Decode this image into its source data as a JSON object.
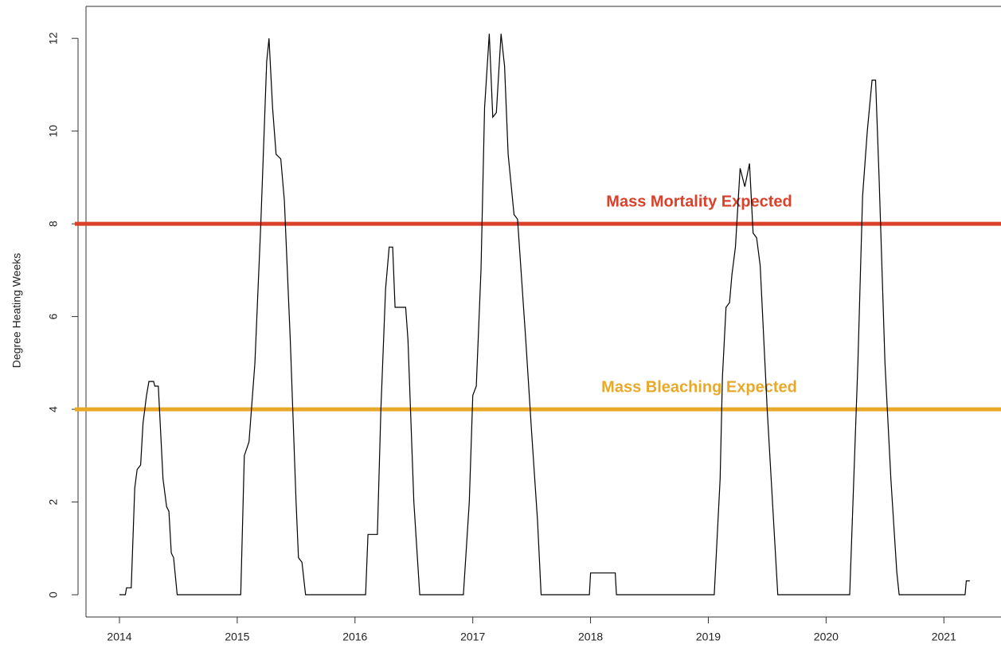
{
  "chart_data": {
    "type": "line",
    "y_label": "Degree Heating Weeks",
    "xlim": [
      2013.716,
      2021.485
    ],
    "ylim": [
      -0.48,
      12.69
    ],
    "xticks": [
      2014,
      2015,
      2016,
      2017,
      2018,
      2019,
      2020,
      2021
    ],
    "yticks": [
      0,
      2,
      4,
      6,
      8,
      10,
      12
    ],
    "thresholds": [
      {
        "value": 8,
        "label": "Mass Mortality Expected",
        "color": "#d9412b"
      },
      {
        "value": 4,
        "label": "Mass Bleaching Expected",
        "color": "#e8a92a"
      }
    ],
    "series": [
      {
        "color": "#000000",
        "x": [
          2014.0,
          2014.05,
          2014.06,
          2014.1,
          2014.13,
          2014.15,
          2014.18,
          2014.2,
          2014.23,
          2014.25,
          2014.29,
          2014.3,
          2014.33,
          2014.37,
          2014.4,
          2014.42,
          2014.44,
          2014.46,
          2014.49,
          2015.03,
          2015.06,
          2015.1,
          2015.15,
          2015.2,
          2015.25,
          2015.27,
          2015.3,
          2015.33,
          2015.37,
          2015.4,
          2015.45,
          2015.5,
          2015.52,
          2015.55,
          2015.58,
          2016.09,
          2016.11,
          2016.19,
          2016.22,
          2016.26,
          2016.29,
          2016.32,
          2016.34,
          2016.43,
          2016.45,
          2016.5,
          2016.55,
          2016.92,
          2016.97,
          2017.0,
          2017.03,
          2017.07,
          2017.1,
          2017.14,
          2017.17,
          2017.2,
          2017.24,
          2017.27,
          2017.3,
          2017.35,
          2017.38,
          2017.45,
          2017.5,
          2017.55,
          2017.58,
          2017.99,
          2018.0,
          2018.21,
          2018.22,
          2019.05,
          2019.1,
          2019.12,
          2019.15,
          2019.18,
          2019.2,
          2019.23,
          2019.27,
          2019.31,
          2019.35,
          2019.38,
          2019.41,
          2019.44,
          2019.5,
          2019.59,
          2020.2,
          2020.27,
          2020.31,
          2020.35,
          2020.39,
          2020.42,
          2020.45,
          2020.5,
          2020.55,
          2020.6,
          2020.62,
          2021.18,
          2021.19,
          2021.22
        ],
        "values": [
          0,
          0,
          0.15,
          0.15,
          2.3,
          2.7,
          2.8,
          3.7,
          4.3,
          4.6,
          4.6,
          4.5,
          4.5,
          2.5,
          1.9,
          1.8,
          0.9,
          0.8,
          0,
          0,
          3.0,
          3.3,
          5,
          8,
          11.5,
          12.0,
          10.5,
          9.5,
          9.4,
          8.5,
          5.5,
          2,
          0.8,
          0.7,
          0,
          0,
          1.3,
          1.3,
          4,
          6.6,
          7.5,
          7.5,
          6.2,
          6.2,
          5.5,
          2,
          0,
          0,
          2.0,
          4.3,
          4.5,
          7,
          10.5,
          12.1,
          10.3,
          10.4,
          12.1,
          11.4,
          9.5,
          8.2,
          8.1,
          5.5,
          3.5,
          1.6,
          0,
          0,
          0.47,
          0.47,
          0,
          0,
          2.5,
          4.7,
          6.2,
          6.3,
          6.9,
          7.5,
          9.2,
          8.8,
          9.3,
          7.8,
          7.7,
          7.1,
          4,
          0,
          0,
          5,
          8.6,
          10,
          11.1,
          11.1,
          9,
          5,
          2.5,
          0.5,
          0,
          0,
          0.3,
          0.3
        ]
      }
    ]
  }
}
